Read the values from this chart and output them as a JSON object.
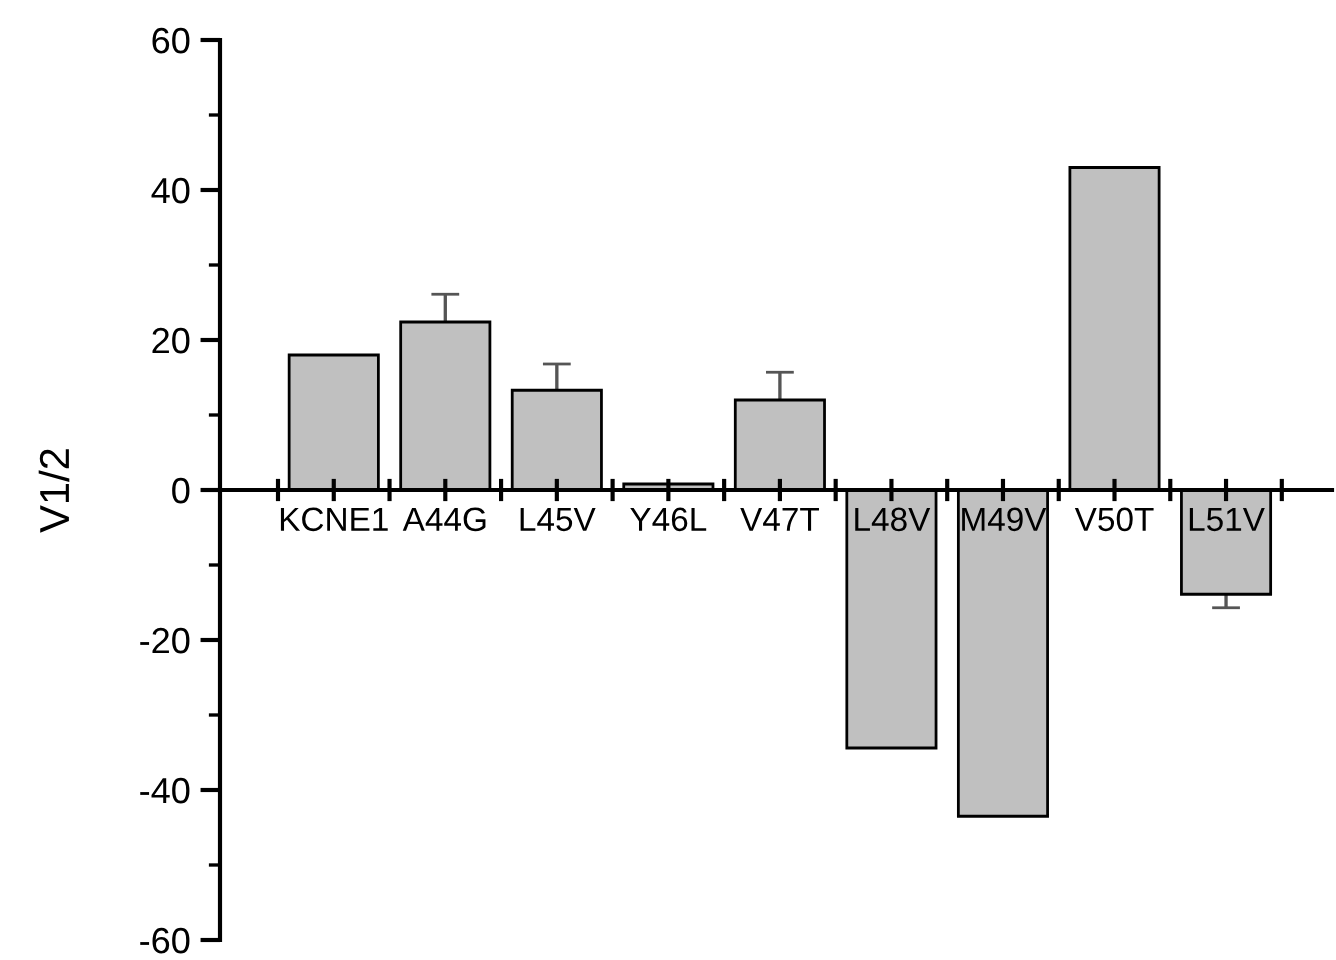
{
  "chart_data": {
    "type": "bar",
    "ylabel": "V1/2",
    "categories": [
      "KCNE1",
      "A44G",
      "L45V",
      "Y46L",
      "V47T",
      "L48V",
      "M49V",
      "V50T",
      "L51V"
    ],
    "values": [
      18,
      22.4,
      13.3,
      0.8,
      12,
      -34.4,
      -43.5,
      43,
      -13.9
    ],
    "errors": [
      null,
      3.7,
      3.5,
      null,
      3.7,
      null,
      null,
      null,
      1.8
    ],
    "color": "#c0c0c0",
    "ylim": [
      -60,
      60
    ],
    "yticks": [
      -60,
      -40,
      -20,
      0,
      20,
      40,
      60
    ],
    "grid": false,
    "legend": false
  }
}
